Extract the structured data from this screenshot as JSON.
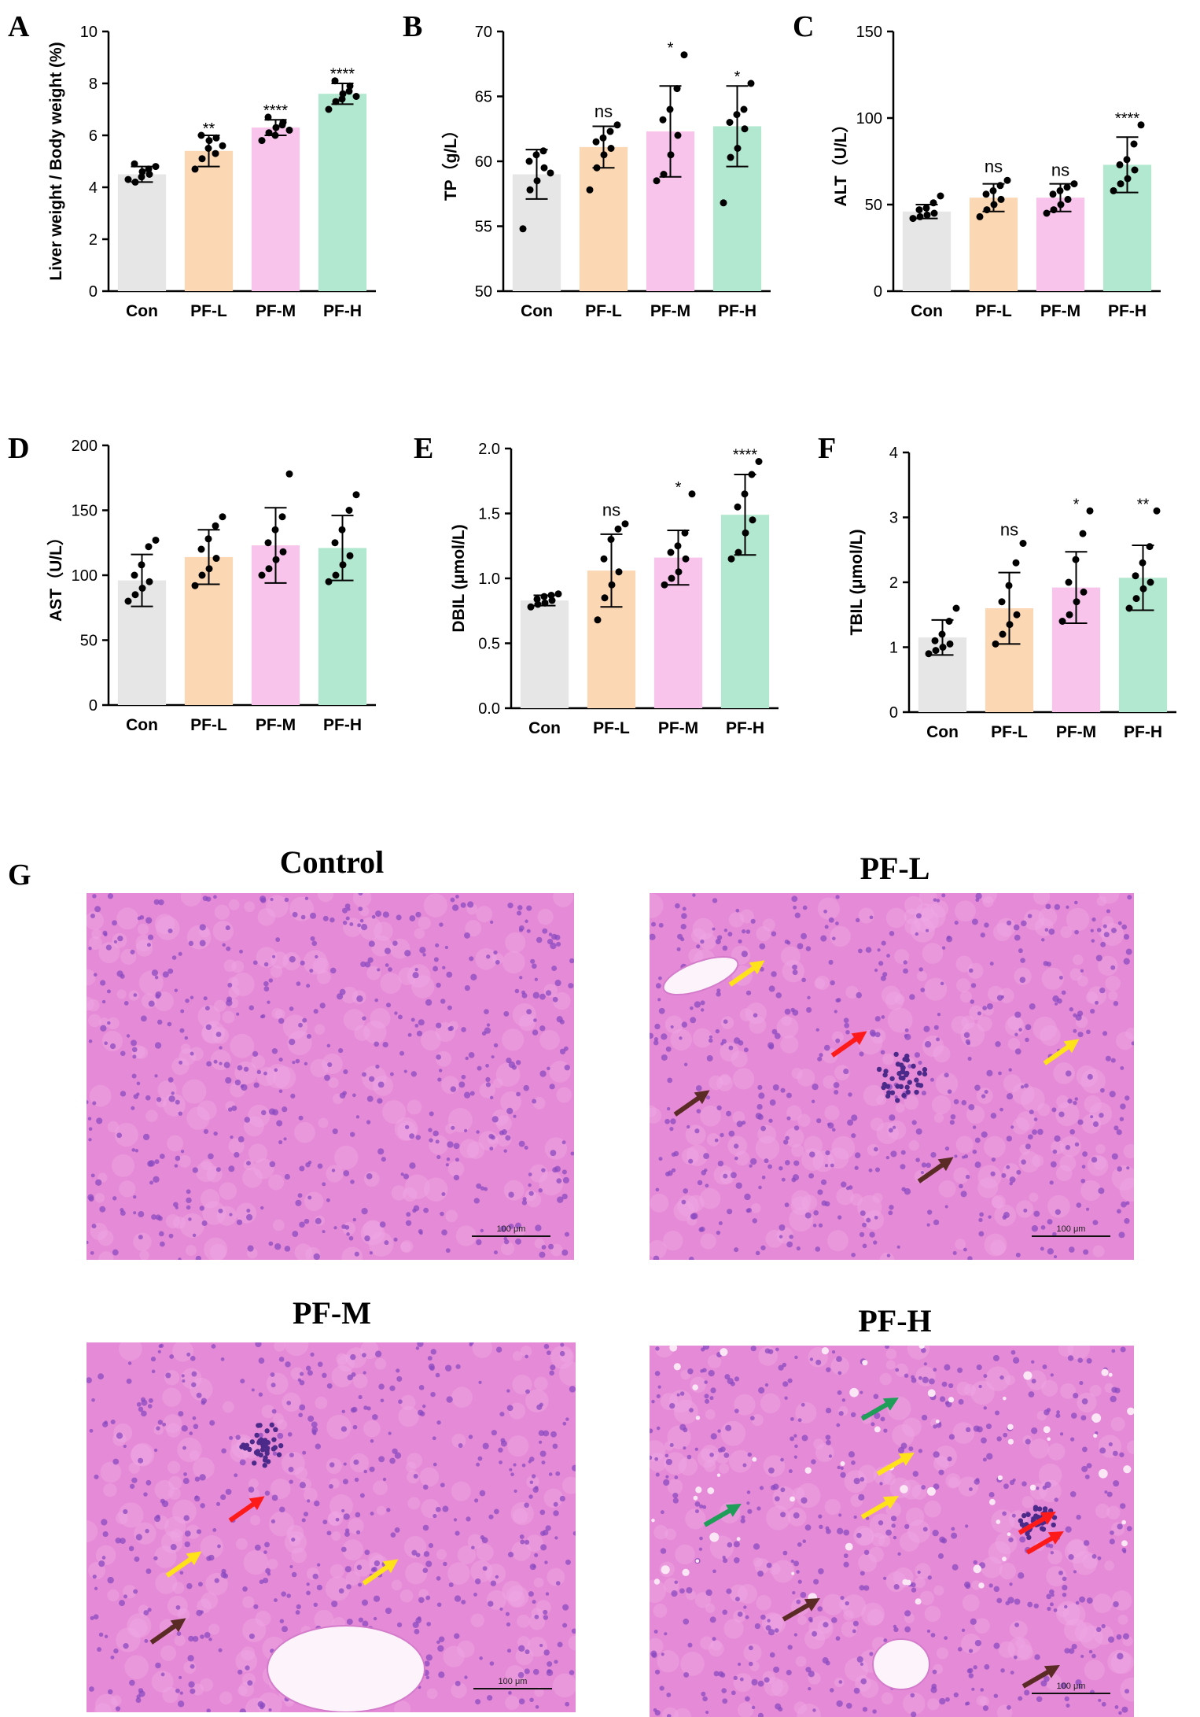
{
  "figure": {
    "panel_letters": [
      "A",
      "B",
      "C",
      "D",
      "E",
      "F",
      "G"
    ],
    "histology": {
      "titles": [
        "Control",
        "PF-L",
        "PF-M",
        "PF-H"
      ],
      "scale_bar_label": "100 μm",
      "tissue_color": "#e58ad6",
      "nuclei_color": "#8a4ac0",
      "arrow_colors": {
        "red": "#ff1a1a",
        "yellow": "#ffe21a",
        "brown": "#5a2a25",
        "green": "#1f9e5a"
      }
    }
  },
  "colors": {
    "Con": "#e6e6e6",
    "PF-L": "#fbd7b3",
    "PF-M": "#f9c4ec",
    "PF-H": "#b3e8d0"
  },
  "chart_data": [
    {
      "panel": "A",
      "type": "bar",
      "categories": [
        "Con",
        "PF-L",
        "PF-M",
        "PF-H"
      ],
      "values": [
        4.5,
        5.4,
        6.3,
        7.6
      ],
      "sd": [
        0.3,
        0.6,
        0.3,
        0.4
      ],
      "points": [
        [
          4.3,
          4.2,
          4.6,
          4.5,
          4.9,
          4.4,
          4.7,
          4.8
        ],
        [
          4.7,
          5.1,
          5.8,
          5.9,
          6.0,
          5.5,
          5.3,
          5.6
        ],
        [
          5.8,
          6.1,
          6.3,
          6.5,
          6.7,
          6.0,
          6.4,
          6.2
        ],
        [
          7.0,
          7.3,
          7.6,
          7.9,
          8.1,
          7.4,
          7.7,
          7.5
        ]
      ],
      "significance": [
        "",
        "**",
        "****",
        "****"
      ],
      "ylabel": "Liver weight / Body weight (%)",
      "ylim": [
        0,
        10
      ],
      "yticks": [
        0,
        2,
        4,
        6,
        8,
        10
      ]
    },
    {
      "panel": "B",
      "type": "bar",
      "categories": [
        "Con",
        "PF-L",
        "PF-M",
        "PF-H"
      ],
      "values": [
        59.0,
        61.1,
        62.3,
        62.7
      ],
      "sd": [
        1.9,
        1.6,
        3.5,
        3.1
      ],
      "points": [
        [
          54.8,
          57.8,
          58.5,
          59.5,
          60.0,
          60.5,
          60.8,
          59.1
        ],
        [
          57.8,
          59.5,
          60.5,
          61.0,
          61.5,
          61.8,
          62.3,
          62.8
        ],
        [
          58.5,
          59.0,
          60.5,
          62.0,
          63.2,
          64.0,
          65.6,
          68.2
        ],
        [
          56.8,
          60.3,
          61.0,
          62.5,
          63.0,
          63.6,
          64.0,
          66.0
        ]
      ],
      "significance": [
        "",
        "ns",
        "*",
        "*"
      ],
      "ylabel": "TP（g/L）",
      "ylim": [
        50,
        70
      ],
      "yticks": [
        50,
        55,
        60,
        65,
        70
      ]
    },
    {
      "panel": "C",
      "type": "bar",
      "categories": [
        "Con",
        "PF-L",
        "PF-M",
        "PF-H"
      ],
      "values": [
        46,
        54,
        54,
        73
      ],
      "sd": [
        4,
        8,
        8,
        16
      ],
      "points": [
        [
          42,
          43,
          44,
          45,
          47,
          48,
          51,
          55
        ],
        [
          43,
          47,
          50,
          53,
          56,
          58,
          61,
          64
        ],
        [
          45,
          47,
          50,
          53,
          56,
          58,
          60,
          62
        ],
        [
          58,
          62,
          65,
          70,
          73,
          76,
          85,
          96
        ]
      ],
      "significance": [
        "",
        "ns",
        "ns",
        "****"
      ],
      "ylabel": "ALT（U/L）",
      "ylim": [
        0,
        150
      ],
      "yticks": [
        0,
        50,
        100,
        150
      ]
    },
    {
      "panel": "D",
      "type": "bar",
      "categories": [
        "Con",
        "PF-L",
        "PF-M",
        "PF-H"
      ],
      "values": [
        96,
        114,
        123,
        121
      ],
      "sd": [
        20,
        21,
        29,
        25
      ],
      "points": [
        [
          80,
          85,
          90,
          95,
          100,
          108,
          122,
          127
        ],
        [
          92,
          100,
          105,
          113,
          120,
          128,
          138,
          145
        ],
        [
          100,
          105,
          112,
          118,
          125,
          135,
          145,
          178
        ],
        [
          95,
          100,
          108,
          115,
          125,
          135,
          150,
          162
        ]
      ],
      "significance": [
        "",
        "",
        "",
        ""
      ],
      "ylabel": "AST（U/L）",
      "ylim": [
        0,
        200
      ],
      "yticks": [
        0,
        50,
        100,
        150,
        200
      ]
    },
    {
      "panel": "E",
      "type": "bar",
      "categories": [
        "Con",
        "PF-L",
        "PF-M",
        "PF-H"
      ],
      "values": [
        0.83,
        1.06,
        1.16,
        1.49
      ],
      "sd": [
        0.04,
        0.28,
        0.21,
        0.31
      ],
      "points": [
        [
          0.78,
          0.8,
          0.81,
          0.83,
          0.84,
          0.86,
          0.87,
          0.88
        ],
        [
          0.68,
          0.85,
          0.95,
          1.05,
          1.15,
          1.3,
          1.38,
          1.42
        ],
        [
          0.95,
          1.0,
          1.05,
          1.15,
          1.2,
          1.25,
          1.35,
          1.65
        ],
        [
          1.15,
          1.2,
          1.35,
          1.45,
          1.55,
          1.65,
          1.8,
          1.9
        ]
      ],
      "significance": [
        "",
        "ns",
        "*",
        "****"
      ],
      "ylabel": "DBIL (μmol/L)",
      "ylim": [
        0,
        2.0
      ],
      "yticks": [
        0.0,
        0.5,
        1.0,
        1.5,
        2.0
      ]
    },
    {
      "panel": "F",
      "type": "bar",
      "categories": [
        "Con",
        "PF-L",
        "PF-M",
        "PF-H"
      ],
      "values": [
        1.15,
        1.6,
        1.92,
        2.07
      ],
      "sd": [
        0.27,
        0.55,
        0.55,
        0.5
      ],
      "points": [
        [
          0.9,
          0.95,
          1.0,
          1.05,
          1.1,
          1.2,
          1.4,
          1.6
        ],
        [
          1.05,
          1.2,
          1.35,
          1.5,
          1.7,
          1.95,
          2.3,
          2.6
        ],
        [
          1.4,
          1.5,
          1.7,
          1.85,
          2.0,
          2.35,
          2.75,
          3.1
        ],
        [
          1.6,
          1.75,
          1.9,
          2.0,
          2.1,
          2.3,
          2.55,
          3.1
        ]
      ],
      "significance": [
        "",
        "ns",
        "*",
        "**"
      ],
      "ylabel": "TBIL (μmol/L)",
      "ylim": [
        0,
        4
      ],
      "yticks": [
        0,
        1,
        2,
        3,
        4
      ]
    }
  ]
}
